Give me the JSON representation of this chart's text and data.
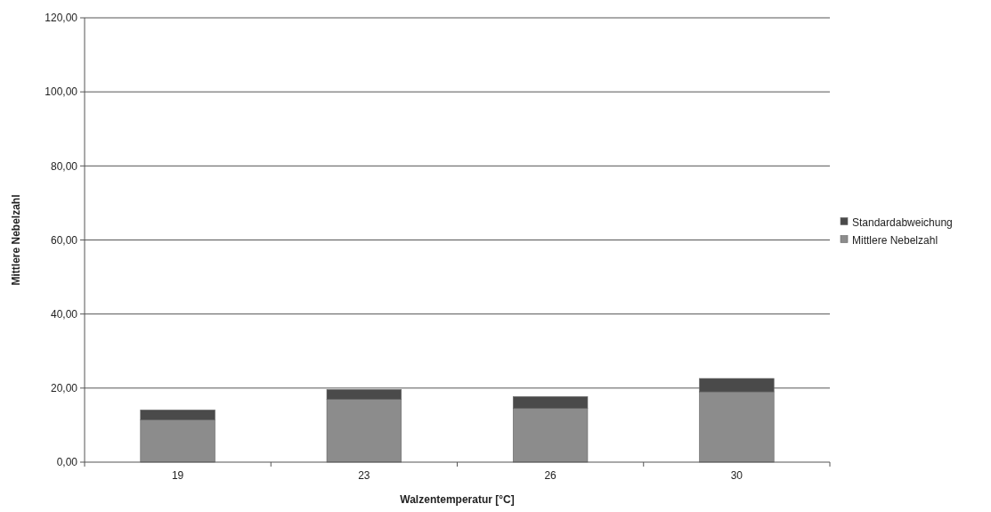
{
  "chart_data": {
    "type": "bar",
    "stacked": true,
    "xlabel": "Walzentemperatur [°C]",
    "ylabel": "Mittlere Nebelzahl",
    "categories": [
      "19",
      "23",
      "26",
      "30"
    ],
    "series": [
      {
        "name": "Mittlere Nebelzahl",
        "color": "#8c8c8c",
        "values": [
          11.4,
          17.0,
          14.5,
          19.0
        ]
      },
      {
        "name": "Standardabweichung",
        "color": "#4a4a4a",
        "values": [
          2.7,
          2.6,
          3.2,
          3.6
        ]
      }
    ],
    "ylim": [
      0,
      120
    ],
    "yticks": [
      {
        "value": 0,
        "label": "0,00"
      },
      {
        "value": 20,
        "label": "20,00"
      },
      {
        "value": 40,
        "label": "40,00"
      },
      {
        "value": 60,
        "label": "60,00"
      },
      {
        "value": 80,
        "label": "80,00"
      },
      {
        "value": 100,
        "label": "100,00"
      },
      {
        "value": 120,
        "label": "120,00"
      }
    ],
    "grid": "y",
    "legend": "right"
  }
}
